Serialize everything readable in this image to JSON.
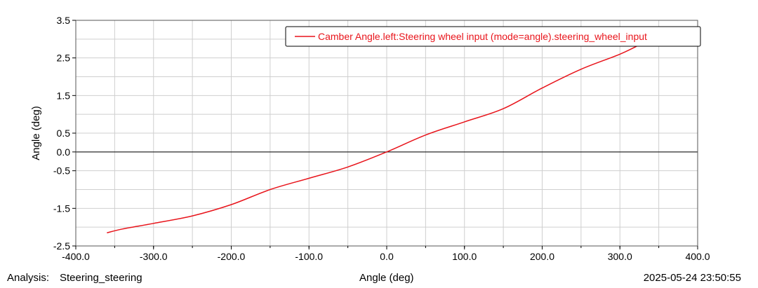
{
  "footer": {
    "analysis_label": "Analysis:",
    "analysis_name": "Steering_steering",
    "timestamp": "2025-05-24 23:50:55"
  },
  "chart_data": {
    "type": "line",
    "title": "",
    "xlabel": "Angle (deg)",
    "ylabel": "Angle (deg)",
    "xlim": [
      -400.0,
      400.0
    ],
    "ylim": [
      -2.5,
      3.5
    ],
    "x_ticks": [
      -400.0,
      -300.0,
      -200.0,
      -100.0,
      0.0,
      100.0,
      200.0,
      300.0,
      400.0
    ],
    "x_tick_labels": [
      "-400.0",
      "-300.0",
      "-200.0",
      "-100.0",
      "0.0",
      "100.0",
      "200.0",
      "300.0",
      "400.0"
    ],
    "y_ticks": [
      -2.5,
      -1.5,
      -0.5,
      0.0,
      0.5,
      1.5,
      2.5,
      3.5
    ],
    "y_tick_labels": [
      "-2.5",
      "-1.5",
      "-0.5",
      "0.0",
      "0.5",
      "1.5",
      "2.5",
      "3.5"
    ],
    "grid": true,
    "zero_line": true,
    "legend_position": "top-right",
    "series": [
      {
        "name": "Camber Angle.left:Steering wheel input (mode=angle).steering_wheel_input",
        "color": "#e8141b",
        "x": [
          -360,
          -340,
          -300,
          -250,
          -200,
          -150,
          -100,
          -50,
          0,
          50,
          100,
          150,
          200,
          250,
          300,
          330
        ],
        "y": [
          -2.15,
          -2.05,
          -1.9,
          -1.7,
          -1.4,
          -1.0,
          -0.7,
          -0.4,
          0.0,
          0.45,
          0.8,
          1.15,
          1.7,
          2.2,
          2.6,
          2.9
        ]
      }
    ]
  }
}
